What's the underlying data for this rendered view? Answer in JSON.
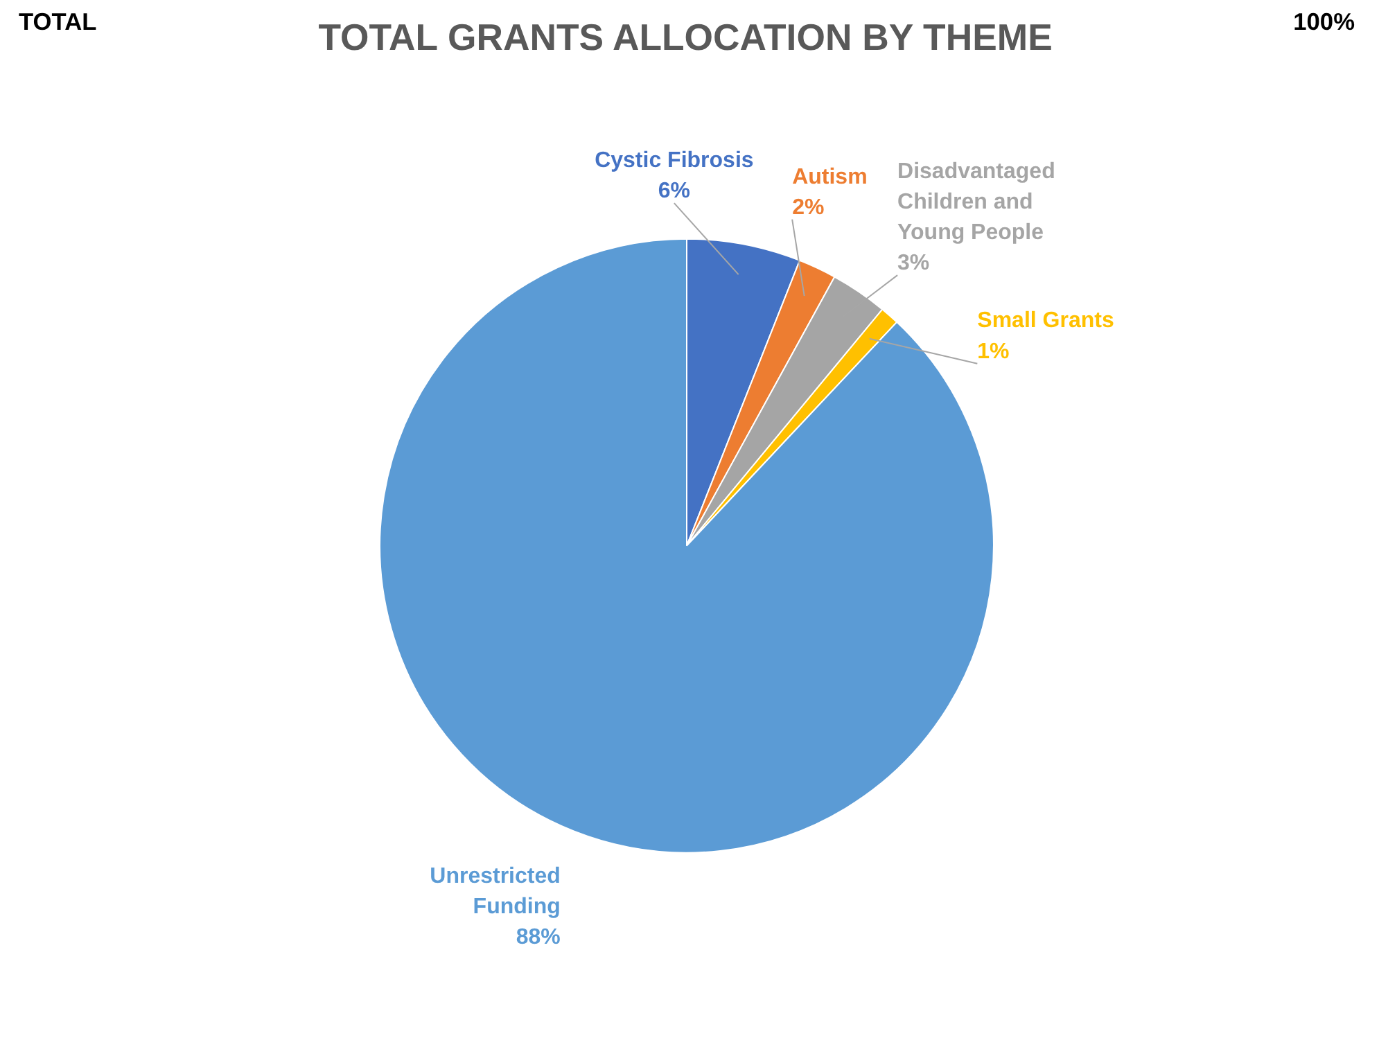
{
  "chart_data": {
    "type": "pie",
    "title": "TOTAL GRANTS ALLOCATION BY THEME",
    "categories": [
      "Cystic Fibrosis",
      "Autism",
      "Disadvantaged Children and Young People",
      "Small Grants",
      "Unrestricted Funding"
    ],
    "values": [
      6,
      2,
      3,
      1,
      88
    ],
    "colors": [
      "#4472c4",
      "#ed7d31",
      "#a5a5a5",
      "#ffc000",
      "#5b9bd5"
    ],
    "value_labels": [
      "6%",
      "2%",
      "3%",
      "1%",
      "88%"
    ],
    "annotations": [
      "TOTAL",
      "100%"
    ]
  }
}
